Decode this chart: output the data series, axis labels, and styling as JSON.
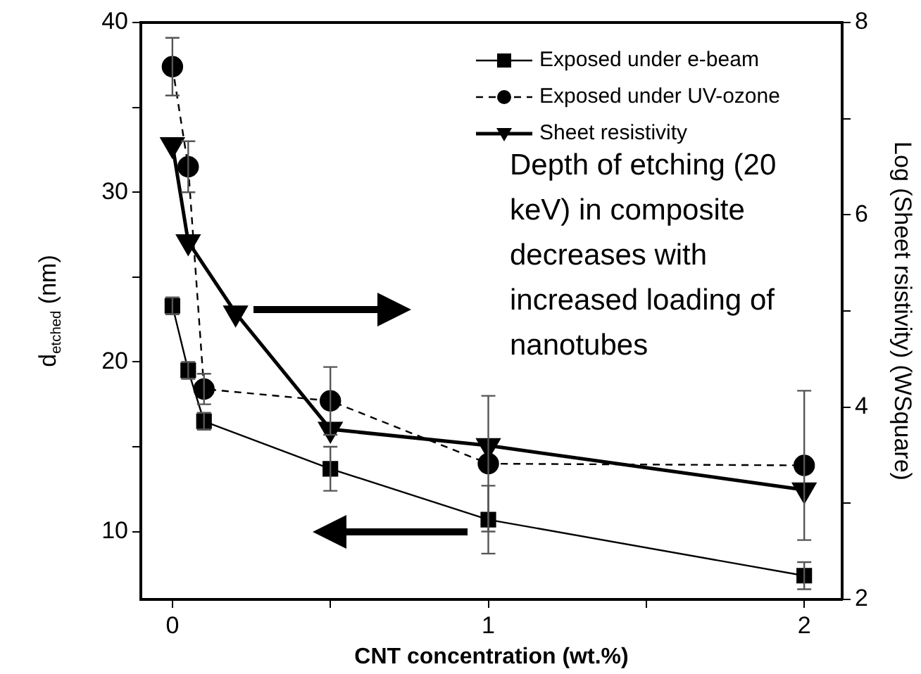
{
  "chart_data": {
    "type": "line",
    "xlabel": "CNT concentration (wt.%)",
    "ylabel": "d$_{etched}$ (nm)",
    "y2label": "Log (Sheet rsistivity) (WSquare)",
    "x": [
      0,
      0.05,
      0.1,
      0.5,
      1,
      2
    ],
    "series": [
      {
        "name": "Exposed under e-beam",
        "color": "#000000",
        "marker": "square",
        "line_style": "solid",
        "values": [
          23.3,
          19.5,
          16.5,
          13.7,
          10.7,
          7.4
        ],
        "errors": [
          0.5,
          0.5,
          0.5,
          1.3,
          2,
          0.8
        ]
      },
      {
        "name": "Exposed under UV-ozone",
        "color": "#000000",
        "marker": "circle",
        "line_style": "dashed",
        "values": [
          37.4,
          31.5,
          18.4,
          17.7,
          14.0,
          13.9
        ],
        "errors": [
          1.7,
          1.5,
          0.9,
          2,
          4,
          4.4
        ]
      },
      {
        "name": "Sheet resistivity",
        "color": "#000000",
        "marker": "triangle",
        "line_style": "solid",
        "axis": "y2",
        "x": [
          0,
          0.05,
          0.2,
          0.5,
          1,
          2
        ],
        "values": [
          6.73,
          5.72,
          4.98,
          3.77,
          3.6,
          3.14
        ]
      }
    ],
    "xlim": [
      -0.1,
      2.12
    ],
    "xticks": [
      0,
      {
        "value": 0.5,
        "label": null
      },
      1,
      {
        "value": 1.5,
        "label": null
      },
      2
    ],
    "ylim": [
      6,
      40
    ],
    "yticks": [
      10,
      {
        "value": 15,
        "label": null
      },
      20,
      {
        "value": 25,
        "label": null
      },
      30,
      {
        "value": 35,
        "label": null
      },
      40
    ],
    "y2lim": [
      2,
      8
    ],
    "y2ticks": [
      2,
      {
        "value": 3,
        "label": null
      },
      4,
      {
        "value": 5,
        "label": null
      },
      6,
      {
        "value": 7,
        "label": null
      },
      8
    ],
    "grid": false,
    "legend": "top right",
    "annotations": [
      "Depth of etching (20 keV) in composite decreases with increased loading of nanotubes"
    ]
  }
}
